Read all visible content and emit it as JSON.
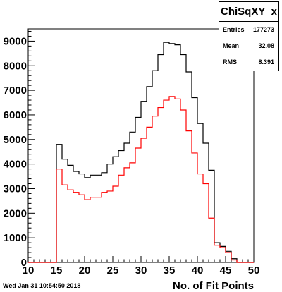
{
  "chart_data": {
    "type": "histogram",
    "xlabel": "No. of Fit Points",
    "xlim": [
      10,
      50
    ],
    "ylim": [
      0,
      9500
    ],
    "x_ticks": [
      "10",
      "15",
      "20",
      "25",
      "30",
      "35",
      "40",
      "45",
      "50"
    ],
    "y_ticks": [
      "0",
      "1000",
      "2000",
      "3000",
      "4000",
      "5000",
      "6000",
      "7000",
      "8000",
      "9000"
    ],
    "bin_edges_start": 10,
    "bin_width": 1,
    "series": [
      {
        "color": "#000000",
        "values": [
          0,
          0,
          0,
          0,
          0,
          4800,
          4200,
          3950,
          3700,
          3600,
          3450,
          3550,
          3550,
          3650,
          4000,
          4300,
          4550,
          4850,
          5300,
          5900,
          6550,
          7150,
          7800,
          8450,
          8950,
          8900,
          8850,
          8450,
          7750,
          6700,
          5650,
          4850,
          3750,
          800,
          650,
          450,
          150,
          0,
          0,
          0
        ]
      },
      {
        "color": "#ff0000",
        "values": [
          0,
          0,
          0,
          0,
          0,
          3800,
          3150,
          2950,
          2850,
          2750,
          2550,
          2650,
          2650,
          2850,
          2900,
          3100,
          3550,
          3850,
          4050,
          4650,
          5050,
          5500,
          5950,
          6300,
          6600,
          6750,
          6650,
          6200,
          5350,
          4450,
          3600,
          3200,
          1800,
          700,
          600,
          400,
          100,
          0,
          0,
          0
        ]
      }
    ]
  },
  "stats": {
    "title": "ChiSqXY_x",
    "entries_label": "Entries",
    "entries_value": "177273",
    "mean_label": "Mean",
    "mean_value": "32.08",
    "rms_label": "RMS",
    "rms_value": "8.391"
  },
  "timestamp": "Wed Jan 31 10:54:50 2018"
}
